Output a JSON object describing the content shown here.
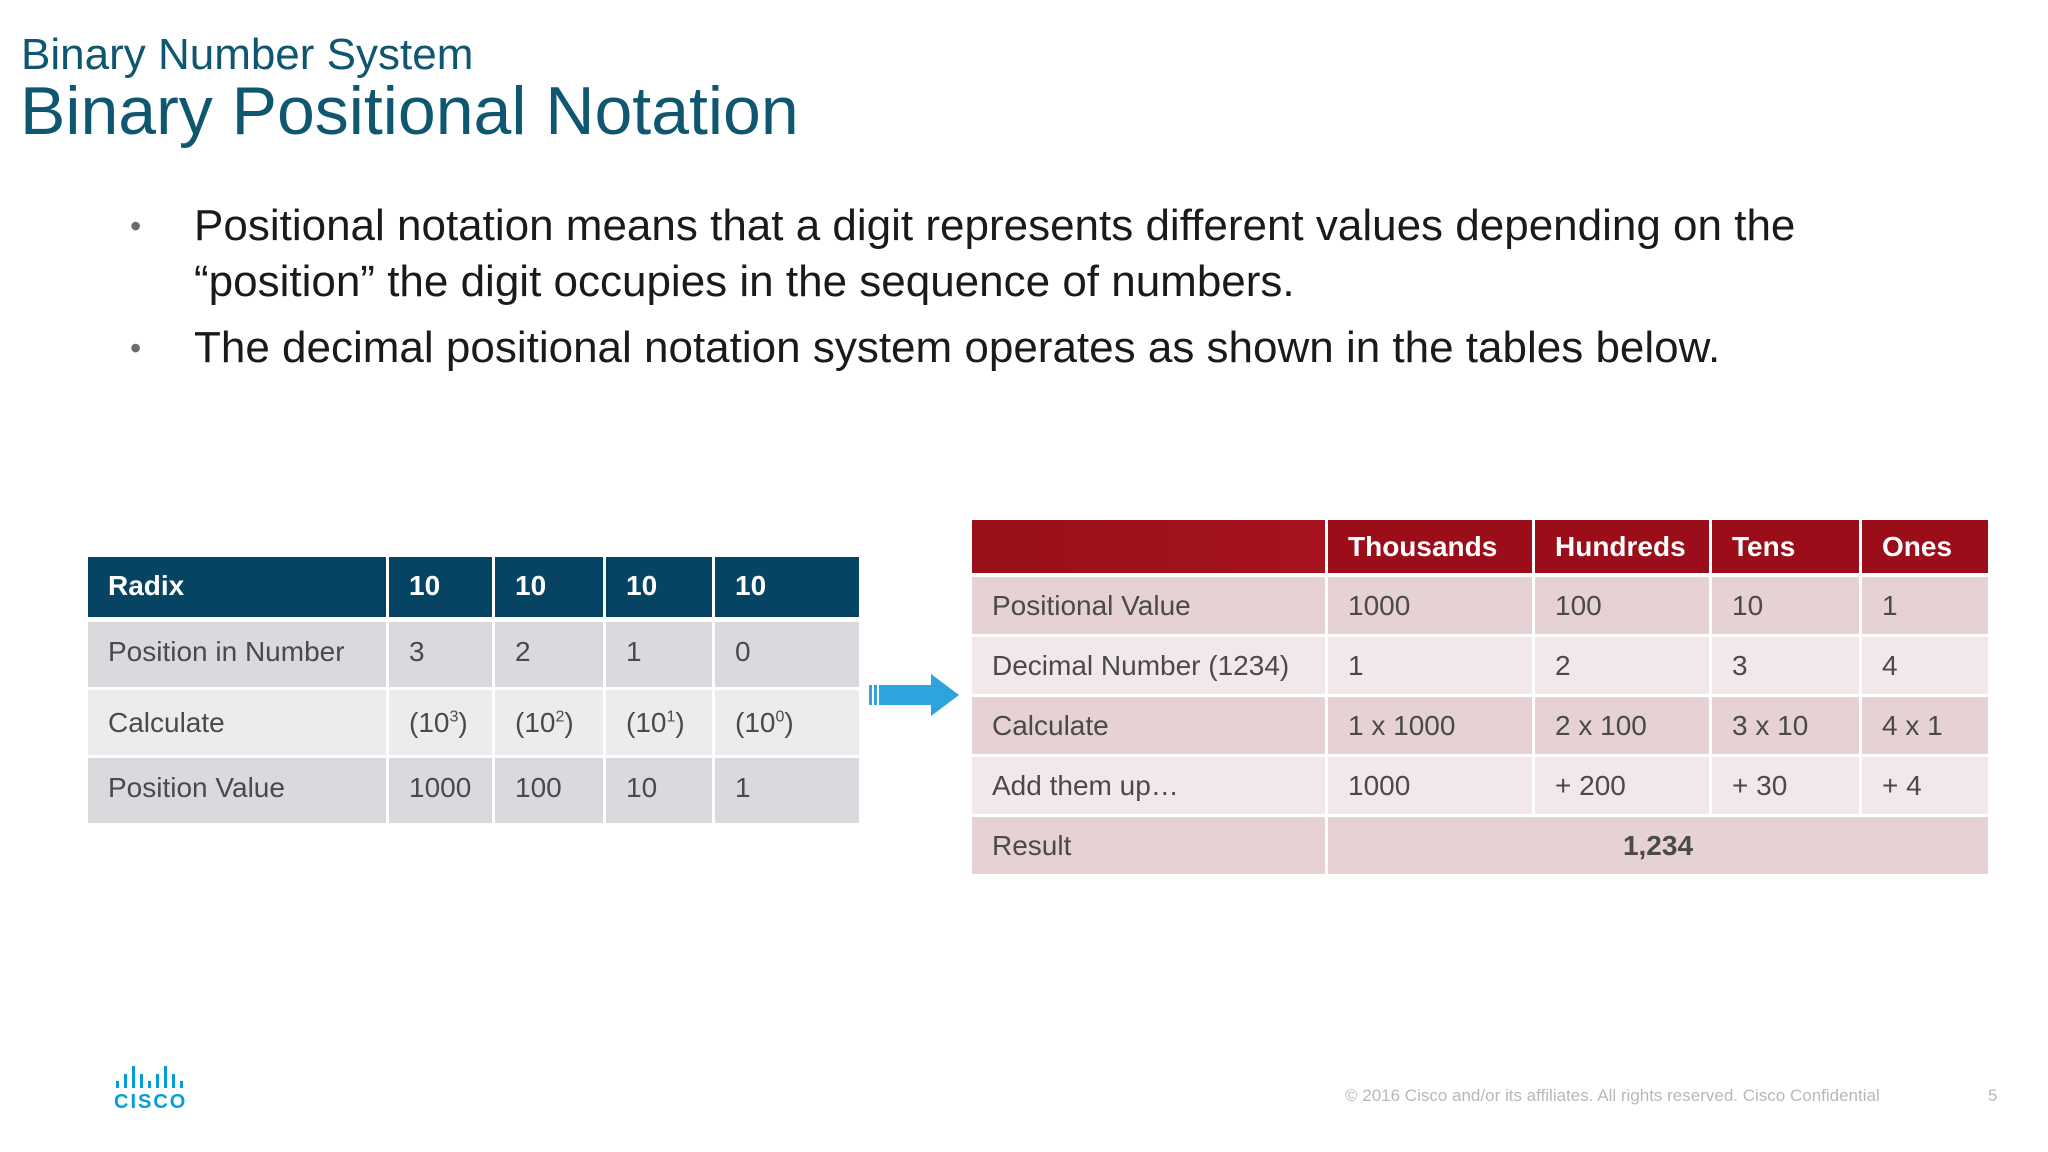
{
  "header": {
    "subtitle": "Binary Number System",
    "title": "Binary Positional Notation"
  },
  "bullets": [
    "Positional notation means that a digit represents different values depending on the “position” the digit occupies in the sequence of numbers.",
    "The decimal positional notation system operates as shown in the tables below."
  ],
  "radix_table": {
    "header": [
      "Radix",
      "10",
      "10",
      "10",
      "10"
    ],
    "position_row": [
      "Position in Number",
      "3",
      "2",
      "1",
      "0"
    ],
    "calculate_label": "Calculate",
    "calculate": [
      {
        "open": "(10",
        "exp": "3",
        "close": ")"
      },
      {
        "open": "(10",
        "exp": "2",
        "close": ")"
      },
      {
        "open": "(10",
        "exp": "1",
        "close": ")"
      },
      {
        "open": "(10",
        "exp": "0",
        "close": ")"
      }
    ],
    "value_row": [
      "Position Value",
      "1000",
      "100",
      "10",
      "1"
    ]
  },
  "positional_table": {
    "header": [
      "",
      "Thousands",
      "Hundreds",
      "Tens",
      "Ones"
    ],
    "rows": [
      [
        "Positional Value",
        "1000",
        "100",
        "10",
        "1"
      ],
      [
        "Decimal Number (1234)",
        "1",
        "2",
        "3",
        "4"
      ],
      [
        "Calculate",
        "1 x 1000",
        "2 x 100",
        "3 x 10",
        "4 x 1"
      ],
      [
        "Add them up…",
        "1000",
        "+ 200",
        "+ 30",
        "+ 4"
      ]
    ],
    "result_label": "Result",
    "result_value": "1,234"
  },
  "footer": {
    "logo_text": "CISCO",
    "copyright": "© 2016  Cisco and/or its affiliates. All rights reserved.   Cisco Confidential",
    "page_number": "5"
  },
  "colors": {
    "title": "#0f5670",
    "radix_header": "#074463",
    "pos_header": "#9b0d18",
    "arrow": "#2ea3dc",
    "logo": "#049fd9"
  },
  "icons": {
    "arrow": "right-arrow-icon",
    "logo": "cisco-logo"
  }
}
